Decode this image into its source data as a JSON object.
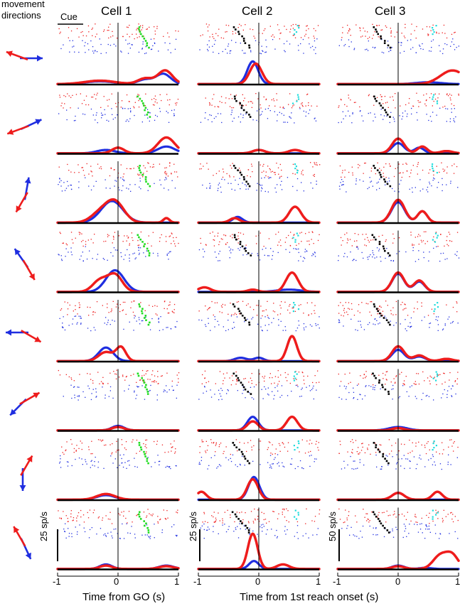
{
  "figure": {
    "header_left": "movement\ndirections",
    "cue_label": "Cue",
    "cell_titles": [
      "Cell 1",
      "Cell 2",
      "Cell 3"
    ],
    "xlabels": [
      "Time from GO (s)",
      "Time from 1st reach onset (s)"
    ],
    "tick_labels": [
      "-1",
      "0",
      "1"
    ],
    "scale_bars": [
      "25 sp/s",
      "25 sp/s",
      "50 sp/s"
    ],
    "colors": {
      "red": "#ee1c1c",
      "blue": "#1f2ee0",
      "green": "#22dd22",
      "cyan": "#22dddd",
      "black": "#000000"
    }
  },
  "chart_data": {
    "type": "line",
    "title": "",
    "xlim": [
      -1,
      1
    ],
    "xticks": [
      -1,
      0,
      1
    ],
    "n_directions": 8,
    "direction_arrows": [
      {
        "blue_deg": 0,
        "red_deg": 160
      },
      {
        "blue_deg": 25,
        "red_deg": 200
      },
      {
        "blue_deg": 80,
        "red_deg": 240
      },
      {
        "blue_deg": 125,
        "red_deg": 300
      },
      {
        "blue_deg": 180,
        "red_deg": 330
      },
      {
        "blue_deg": 225,
        "red_deg": 30
      },
      {
        "blue_deg": 270,
        "red_deg": 60
      },
      {
        "blue_deg": 295,
        "red_deg": 120
      }
    ],
    "series_colors": [
      "red",
      "blue"
    ],
    "cells": [
      {
        "name": "Cell 1",
        "scale": "25 sp/s",
        "curves": [
          {
            "red": [
              [
                -0.3,
                0.15,
                0.25
              ],
              [
                0.45,
                0.25,
                0.12
              ],
              [
                0.78,
                0.6,
                0.12
              ]
            ],
            "blue": [
              [
                -0.3,
                0.12,
                0.25
              ],
              [
                0.45,
                0.2,
                0.12
              ],
              [
                0.75,
                0.45,
                0.12
              ]
            ]
          },
          {
            "red": [
              [
                0,
                0.25,
                0.1
              ],
              [
                0.8,
                0.7,
                0.14
              ]
            ],
            "blue": [
              [
                -0.2,
                0.15,
                0.15
              ],
              [
                0.8,
                0.3,
                0.14
              ]
            ]
          },
          {
            "red": [
              [
                -0.3,
                0.4,
                0.15
              ],
              [
                -0.05,
                0.9,
                0.15
              ],
              [
                0.8,
                0.2,
                0.05
              ]
            ],
            "blue": [
              [
                -0.1,
                0.95,
                0.18
              ]
            ]
          },
          {
            "red": [
              [
                -0.3,
                0.5,
                0.12
              ],
              [
                -0.05,
                0.75,
                0.12
              ]
            ],
            "blue": [
              [
                -0.05,
                0.95,
                0.15
              ]
            ]
          },
          {
            "red": [
              [
                -0.2,
                0.4,
                0.12
              ],
              [
                0.05,
                0.6,
                0.08
              ]
            ],
            "blue": [
              [
                -0.2,
                0.6,
                0.12
              ]
            ]
          },
          {
            "red": [
              [
                0,
                0.15,
                0.1
              ]
            ],
            "blue": [
              [
                0,
                0.2,
                0.1
              ]
            ]
          },
          {
            "red": [
              [
                -0.2,
                0.25,
                0.15
              ]
            ],
            "blue": [
              [
                -0.2,
                0.2,
                0.15
              ]
            ]
          },
          {
            "red": [
              [
                -0.2,
                0.15,
                0.1
              ],
              [
                0.8,
                0.12,
                0.12
              ]
            ],
            "blue": [
              [
                -0.2,
                0.2,
                0.1
              ],
              [
                0.8,
                0.15,
                0.12
              ]
            ]
          }
        ]
      },
      {
        "name": "Cell 2",
        "scale": "25 sp/s",
        "curves": [
          {
            "red": [
              [
                -0.05,
                0.9,
                0.1
              ]
            ],
            "blue": [
              [
                -0.1,
                1.0,
                0.09
              ]
            ]
          },
          {
            "red": [
              [
                0,
                0.15,
                0.1
              ],
              [
                0.6,
                0.15,
                0.1
              ]
            ],
            "blue": [
              [
                0,
                0.15,
                0.1
              ]
            ]
          },
          {
            "red": [
              [
                -0.4,
                0.2,
                0.08
              ],
              [
                0.6,
                0.7,
                0.1
              ]
            ],
            "blue": [
              [
                -0.35,
                0.25,
                0.08
              ]
            ]
          },
          {
            "red": [
              [
                -0.9,
                0.2,
                0.1
              ],
              [
                -0.1,
                0.1,
                0.08
              ],
              [
                0.55,
                0.85,
                0.1
              ]
            ],
            "blue": [
              [
                0.5,
                0.1,
                0.2
              ]
            ]
          },
          {
            "red": [
              [
                0.55,
                1.1,
                0.08
              ]
            ],
            "blue": [
              [
                -0.3,
                0.15,
                0.1
              ],
              [
                0,
                0.15,
                0.08
              ]
            ]
          },
          {
            "red": [
              [
                -0.1,
                0.4,
                0.09
              ],
              [
                0.55,
                0.6,
                0.09
              ]
            ],
            "blue": [
              [
                -0.1,
                0.6,
                0.09
              ]
            ]
          },
          {
            "red": [
              [
                -0.95,
                0.35,
                0.08
              ],
              [
                -0.1,
                0.9,
                0.09
              ]
            ],
            "blue": [
              [
                -0.08,
                1.0,
                0.09
              ]
            ]
          },
          {
            "red": [
              [
                -0.1,
                1.55,
                0.08
              ],
              [
                0.4,
                0.2,
                0.1
              ]
            ],
            "blue": [
              [
                -0.08,
                0.35,
                0.08
              ]
            ]
          }
        ]
      },
      {
        "name": "Cell 3",
        "scale": "50 sp/s",
        "curves": [
          {
            "red": [
              [
                0.9,
                0.6,
                0.2
              ]
            ],
            "blue": [
              [
                0.5,
                0.08,
                0.2
              ]
            ]
          },
          {
            "red": [
              [
                0,
                0.65,
                0.1
              ],
              [
                0.4,
                0.3,
                0.08
              ],
              [
                0.8,
                0.1,
                0.1
              ]
            ],
            "blue": [
              [
                0,
                0.45,
                0.1
              ],
              [
                0.35,
                0.25,
                0.08
              ]
            ]
          },
          {
            "red": [
              [
                0,
                1.0,
                0.11
              ],
              [
                0.4,
                0.5,
                0.08
              ]
            ],
            "blue": [
              [
                0,
                0.9,
                0.11
              ],
              [
                0.4,
                0.5,
                0.08
              ]
            ]
          },
          {
            "red": [
              [
                0,
                0.85,
                0.1
              ],
              [
                0.35,
                0.5,
                0.09
              ]
            ],
            "blue": [
              [
                0,
                0.8,
                0.1
              ],
              [
                0.35,
                0.45,
                0.09
              ]
            ]
          },
          {
            "red": [
              [
                0,
                0.65,
                0.1
              ],
              [
                0.35,
                0.25,
                0.1
              ],
              [
                0.8,
                0.1,
                0.1
              ]
            ],
            "blue": [
              [
                0,
                0.5,
                0.1
              ],
              [
                0.35,
                0.2,
                0.1
              ]
            ]
          },
          {
            "red": [
              [
                0,
                0.1,
                0.1
              ]
            ],
            "blue": [
              [
                0,
                0.15,
                0.15
              ]
            ]
          },
          {
            "red": [
              [
                0,
                0.3,
                0.1
              ],
              [
                0.65,
                0.35,
                0.08
              ]
            ],
            "blue": [
              [
                0,
                0.3,
                0.1
              ]
            ]
          },
          {
            "red": [
              [
                0,
                0.12,
                0.1
              ],
              [
                0.7,
                0.6,
                0.12
              ],
              [
                0.9,
                0.55,
                0.1
              ]
            ],
            "blue": [
              [
                0,
                0.15,
                0.1
              ],
              [
                0.45,
                0.05,
                0.1
              ]
            ]
          }
        ]
      }
    ],
    "raster_colors": [
      "red",
      "blue",
      "green",
      "cyan",
      "black"
    ]
  }
}
